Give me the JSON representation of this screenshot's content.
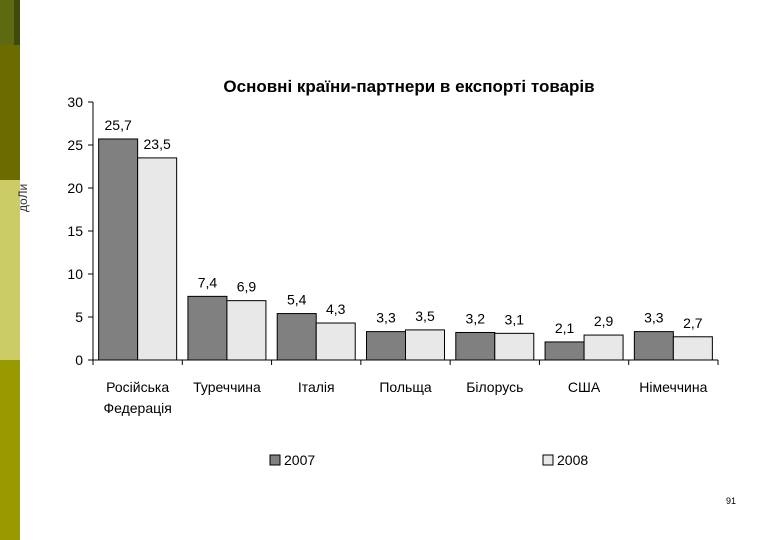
{
  "side_text": "доЛи",
  "page_number": "91",
  "chart_data": {
    "type": "bar",
    "title": "Основні країни-партнери в експорті товарів",
    "categories": [
      [
        "Російська",
        "Федерація"
      ],
      [
        "Туреччина"
      ],
      [
        "Італія"
      ],
      [
        "Польща"
      ],
      [
        "Білорусь"
      ],
      [
        "США"
      ],
      [
        "Німеччина"
      ]
    ],
    "series": [
      {
        "name": "2007",
        "values": [
          25.7,
          7.4,
          5.4,
          3.3,
          3.2,
          2.1,
          3.3
        ],
        "labels": [
          "25,7",
          "7,4",
          "5,4",
          "3,3",
          "3,2",
          "2,1",
          "3,3"
        ],
        "color": "#808080"
      },
      {
        "name": "2008",
        "values": [
          23.5,
          6.9,
          4.3,
          3.5,
          3.1,
          2.9,
          2.7
        ],
        "labels": [
          "23,5",
          "6,9",
          "4,3",
          "3,5",
          "3,1",
          "2,9",
          "2,7"
        ],
        "color": "#e8e8e8"
      }
    ],
    "ylim": [
      0,
      30
    ],
    "yticks": [
      0,
      5,
      10,
      15,
      20,
      25,
      30
    ],
    "legend": "bottom"
  }
}
